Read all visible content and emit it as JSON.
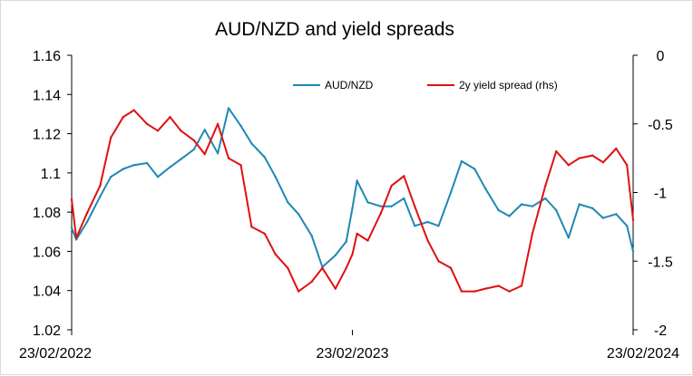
{
  "chart_data": {
    "type": "line",
    "title": "AUD/NZD and yield spreads",
    "xlabel": "",
    "ylabel_left": "",
    "ylabel_right": "",
    "x_tick_labels": [
      "23/02/2022",
      "23/02/2023",
      "23/02/2024"
    ],
    "x_range": [
      "23/02/2022",
      "23/02/2024"
    ],
    "y_left": {
      "ylim": [
        1.02,
        1.16
      ],
      "ticks": [
        "1.02",
        "1.04",
        "1.06",
        "1.08",
        "1.1",
        "1.12",
        "1.14",
        "1.16"
      ]
    },
    "y_right": {
      "ylim": [
        -2,
        0
      ],
      "ticks": [
        "-2",
        "-1.5",
        "-1",
        "-0.5",
        "0"
      ]
    },
    "grid": false,
    "legend_position": "top",
    "series": [
      {
        "name": "AUD/NZD",
        "axis": "left",
        "color": "#1f88b3",
        "x": [
          "23/02/2022",
          "01/03/2022",
          "15/03/2022",
          "01/04/2022",
          "15/04/2022",
          "01/05/2022",
          "15/05/2022",
          "01/06/2022",
          "15/06/2022",
          "01/07/2022",
          "15/07/2022",
          "01/08/2022",
          "15/08/2022",
          "01/09/2022",
          "15/09/2022",
          "01/10/2022",
          "15/10/2022",
          "01/11/2022",
          "15/11/2022",
          "01/12/2022",
          "15/12/2022",
          "01/01/2023",
          "15/01/2023",
          "01/02/2023",
          "15/02/2023",
          "23/02/2023",
          "01/03/2023",
          "15/03/2023",
          "01/04/2023",
          "15/04/2023",
          "01/05/2023",
          "15/05/2023",
          "01/06/2023",
          "15/06/2023",
          "01/07/2023",
          "15/07/2023",
          "01/08/2023",
          "15/08/2023",
          "01/09/2023",
          "15/09/2023",
          "01/10/2023",
          "15/10/2023",
          "01/11/2023",
          "15/11/2023",
          "01/12/2023",
          "15/12/2023",
          "01/01/2024",
          "15/01/2024",
          "01/02/2024",
          "15/02/2024",
          "23/02/2024"
        ],
        "values": [
          1.072,
          1.066,
          1.075,
          1.088,
          1.098,
          1.102,
          1.104,
          1.105,
          1.098,
          1.103,
          1.107,
          1.112,
          1.122,
          1.11,
          1.133,
          1.124,
          1.115,
          1.108,
          1.098,
          1.085,
          1.079,
          1.068,
          1.052,
          1.058,
          1.065,
          1.082,
          1.096,
          1.085,
          1.083,
          1.083,
          1.087,
          1.073,
          1.075,
          1.073,
          1.09,
          1.106,
          1.102,
          1.092,
          1.081,
          1.078,
          1.084,
          1.083,
          1.087,
          1.081,
          1.067,
          1.084,
          1.082,
          1.077,
          1.079,
          1.073,
          1.06
        ]
      },
      {
        "name": "2y yield spread (rhs)",
        "axis": "right",
        "color": "#e01010",
        "x": [
          "23/02/2022",
          "01/03/2022",
          "15/03/2022",
          "01/04/2022",
          "15/04/2022",
          "01/05/2022",
          "15/05/2022",
          "01/06/2022",
          "15/06/2022",
          "01/07/2022",
          "15/07/2022",
          "01/08/2022",
          "15/08/2022",
          "01/09/2022",
          "15/09/2022",
          "01/10/2022",
          "15/10/2022",
          "01/11/2022",
          "15/11/2022",
          "01/12/2022",
          "15/12/2022",
          "01/01/2023",
          "15/01/2023",
          "01/02/2023",
          "15/02/2023",
          "23/02/2023",
          "01/03/2023",
          "15/03/2023",
          "01/04/2023",
          "15/04/2023",
          "01/05/2023",
          "15/05/2023",
          "01/06/2023",
          "15/06/2023",
          "01/07/2023",
          "15/07/2023",
          "01/08/2023",
          "15/08/2023",
          "01/09/2023",
          "15/09/2023",
          "01/10/2023",
          "15/10/2023",
          "01/11/2023",
          "15/11/2023",
          "01/12/2023",
          "15/12/2023",
          "01/01/2024",
          "15/01/2024",
          "01/02/2024",
          "15/02/2024",
          "23/02/2024"
        ],
        "values": [
          -1.05,
          -1.33,
          -1.15,
          -0.95,
          -0.6,
          -0.45,
          -0.4,
          -0.5,
          -0.55,
          -0.45,
          -0.55,
          -0.62,
          -0.72,
          -0.5,
          -0.75,
          -0.8,
          -1.25,
          -1.3,
          -1.45,
          -1.55,
          -1.72,
          -1.65,
          -1.55,
          -1.7,
          -1.55,
          -1.45,
          -1.3,
          -1.35,
          -1.15,
          -0.95,
          -0.88,
          -1.1,
          -1.35,
          -1.5,
          -1.55,
          -1.72,
          -1.72,
          -1.7,
          -1.68,
          -1.72,
          -1.68,
          -1.3,
          -0.95,
          -0.7,
          -0.8,
          -0.75,
          -0.73,
          -0.78,
          -0.68,
          -0.8,
          -1.2
        ]
      }
    ]
  }
}
